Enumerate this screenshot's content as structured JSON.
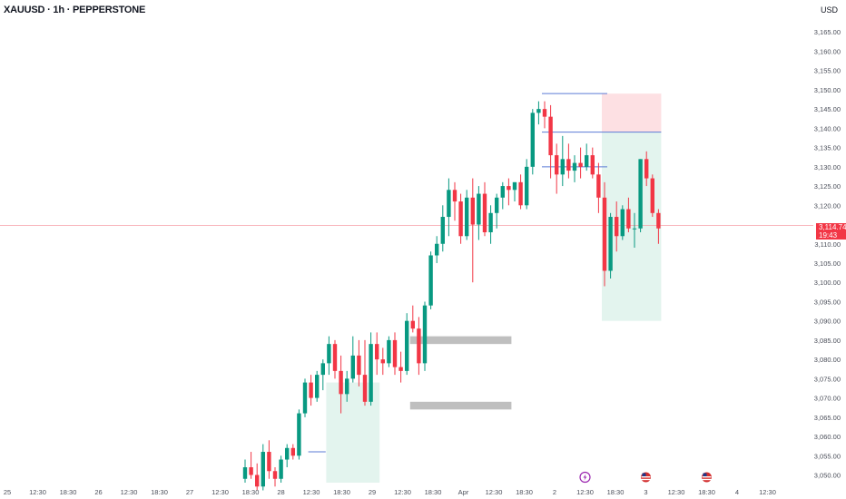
{
  "header": {
    "symbol_line": "XAUUSD · 1h · PEPPERSTONE",
    "currency": "USD"
  },
  "last_price": {
    "value": "3,114.74",
    "countdown": "19:43"
  },
  "colors": {
    "up": "#089981",
    "down": "#f23645",
    "zone_green": "#e3f4ee",
    "zone_red": "#fde0e3",
    "level_line": "#5b7bd6",
    "gray_zone": "#b8b8b8",
    "axis_text": "#4a4e59"
  },
  "chart_data": {
    "type": "candlestick",
    "y_axis": {
      "ticks": [
        "3,165.00",
        "3,160.00",
        "3,155.00",
        "3,150.00",
        "3,145.00",
        "3,140.00",
        "3,135.00",
        "3,130.00",
        "3,125.00",
        "3,120.00",
        "3,110.00",
        "3,105.00",
        "3,100.00",
        "3,095.00",
        "3,090.00",
        "3,085.00",
        "3,080.00",
        "3,075.00",
        "3,070.00",
        "3,065.00",
        "3,060.00",
        "3,055.00",
        "3,050.00"
      ],
      "range": [
        3048,
        3170
      ]
    },
    "x_axis": {
      "ticks": [
        {
          "label": "25",
          "x": 0
        },
        {
          "label": "12:30",
          "x": 1
        },
        {
          "label": "18:30",
          "x": 2
        },
        {
          "label": "26",
          "x": 3
        },
        {
          "label": "12:30",
          "x": 4
        },
        {
          "label": "18:30",
          "x": 5
        },
        {
          "label": "27",
          "x": 6
        },
        {
          "label": "12:30",
          "x": 7
        },
        {
          "label": "18:30",
          "x": 8
        },
        {
          "label": "28",
          "x": 9
        },
        {
          "label": "12:30",
          "x": 10
        },
        {
          "label": "18:30",
          "x": 11
        },
        {
          "label": "29",
          "x": 12
        },
        {
          "label": "12:30",
          "x": 13
        },
        {
          "label": "18:30",
          "x": 14
        },
        {
          "label": "Apr",
          "x": 15
        },
        {
          "label": "12:30",
          "x": 16
        },
        {
          "label": "18:30",
          "x": 17
        },
        {
          "label": "2",
          "x": 18
        },
        {
          "label": "12:30",
          "x": 19
        },
        {
          "label": "18:30",
          "x": 20
        },
        {
          "label": "3",
          "x": 21
        },
        {
          "label": "12:30",
          "x": 22
        },
        {
          "label": "18:30",
          "x": 23
        },
        {
          "label": "4",
          "x": 24
        },
        {
          "label": "12:30",
          "x": 25
        }
      ]
    },
    "candles": [
      [
        3049,
        3054,
        3048,
        3052
      ],
      [
        3052,
        3056,
        3049,
        3050
      ],
      [
        3050,
        3053,
        3046,
        3047
      ],
      [
        3047,
        3058,
        3046,
        3056
      ],
      [
        3056,
        3059,
        3049,
        3051
      ],
      [
        3051,
        3052,
        3047,
        3049
      ],
      [
        3049,
        3055,
        3048,
        3054
      ],
      [
        3054,
        3058,
        3052,
        3057
      ],
      [
        3057,
        3058,
        3054,
        3055
      ],
      [
        3055,
        3067,
        3054,
        3066
      ],
      [
        3066,
        3075,
        3065,
        3074
      ],
      [
        3074,
        3076,
        3068,
        3070
      ],
      [
        3070,
        3077,
        3069,
        3076
      ],
      [
        3076,
        3080,
        3072,
        3079
      ],
      [
        3079,
        3086,
        3076,
        3084
      ],
      [
        3084,
        3085,
        3075,
        3077
      ],
      [
        3077,
        3081,
        3066,
        3071
      ],
      [
        3071,
        3077,
        3069,
        3075
      ],
      [
        3075,
        3086,
        3074,
        3081
      ],
      [
        3081,
        3085,
        3073,
        3076
      ],
      [
        3076,
        3085,
        3068,
        3069
      ],
      [
        3069,
        3087,
        3068,
        3084
      ],
      [
        3084,
        3087,
        3076,
        3080
      ],
      [
        3080,
        3083,
        3076,
        3079
      ],
      [
        3079,
        3086,
        3078,
        3085
      ],
      [
        3085,
        3087,
        3076,
        3078
      ],
      [
        3078,
        3082,
        3074,
        3077
      ],
      [
        3077,
        3092,
        3076,
        3090
      ],
      [
        3090,
        3094,
        3087,
        3088
      ],
      [
        3088,
        3091,
        3076,
        3079
      ],
      [
        3079,
        3095,
        3077,
        3094
      ],
      [
        3094,
        3108,
        3093,
        3107
      ],
      [
        3107,
        3112,
        3105,
        3110
      ],
      [
        3110,
        3120,
        3108,
        3117
      ],
      [
        3117,
        3127,
        3112,
        3124
      ],
      [
        3124,
        3126,
        3116,
        3121
      ],
      [
        3121,
        3123,
        3110,
        3112
      ],
      [
        3112,
        3124,
        3111,
        3122
      ],
      [
        3122,
        3127,
        3100,
        3115
      ],
      [
        3115,
        3125,
        3111,
        3123
      ],
      [
        3123,
        3126,
        3112,
        3113
      ],
      [
        3113,
        3120,
        3110,
        3118
      ],
      [
        3118,
        3123,
        3114,
        3122
      ],
      [
        3122,
        3126,
        3119,
        3125
      ],
      [
        3125,
        3127,
        3120,
        3124
      ],
      [
        3124,
        3126,
        3121,
        3126
      ],
      [
        3126,
        3128,
        3119,
        3120
      ],
      [
        3120,
        3132,
        3119,
        3130
      ],
      [
        3130,
        3145,
        3128,
        3144
      ],
      [
        3144,
        3147,
        3141,
        3145
      ],
      [
        3145,
        3147,
        3140,
        3143
      ],
      [
        3143,
        3146,
        3127,
        3133
      ],
      [
        3133,
        3136,
        3123,
        3128
      ],
      [
        3128,
        3138,
        3125,
        3132
      ],
      [
        3132,
        3136,
        3127,
        3129
      ],
      [
        3129,
        3133,
        3126,
        3131
      ],
      [
        3131,
        3135,
        3127,
        3130
      ],
      [
        3130,
        3136,
        3129,
        3133
      ],
      [
        3133,
        3135,
        3127,
        3128
      ],
      [
        3128,
        3131,
        3118,
        3122
      ],
      [
        3122,
        3126,
        3099,
        3103
      ],
      [
        3103,
        3118,
        3101,
        3117
      ],
      [
        3117,
        3121,
        3108,
        3112
      ],
      [
        3112,
        3120,
        3111,
        3119
      ],
      [
        3119,
        3122,
        3113,
        3114
      ],
      [
        3114,
        3118,
        3109,
        3114
      ],
      [
        3114,
        3132,
        3113,
        3132
      ],
      [
        3132,
        3134,
        3125,
        3127
      ],
      [
        3127,
        3128,
        3117,
        3118
      ],
      [
        3118,
        3119,
        3110,
        3114
      ]
    ],
    "zones": [
      {
        "kind": "green",
        "from": 14,
        "to": 22,
        "low": 3048,
        "high": 3074
      },
      {
        "kind": "gray",
        "from": 28,
        "to": 44,
        "low": 3084,
        "high": 3086
      },
      {
        "kind": "gray",
        "from": 28,
        "to": 44,
        "low": 3067,
        "high": 3069
      },
      {
        "kind": "red",
        "from": 60,
        "to": 69,
        "low": 3139,
        "high": 3149
      },
      {
        "kind": "green",
        "from": 60,
        "to": 69,
        "low": 3090,
        "high": 3139
      }
    ],
    "levels": [
      {
        "from": 11,
        "to": 13,
        "price": 3056
      },
      {
        "from": 50,
        "to": 60,
        "price": 3149
      },
      {
        "from": 50,
        "to": 69,
        "price": 3139
      },
      {
        "from": 50,
        "to": 60,
        "price": 3130
      }
    ],
    "current_price": 3114.74,
    "event_markers": [
      {
        "x": 19,
        "kind": "lightning"
      },
      {
        "x": 21,
        "kind": "us-flag"
      },
      {
        "x": 23,
        "kind": "us-flag"
      }
    ]
  }
}
